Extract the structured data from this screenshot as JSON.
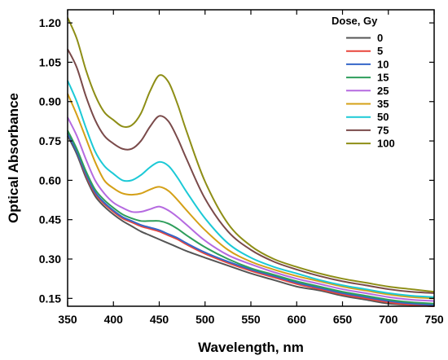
{
  "chart_data": {
    "type": "line",
    "xlabel": "Wavelength, nm",
    "ylabel": "Optical Absorbance",
    "xlim": [
      350,
      750
    ],
    "ylim": [
      0.12,
      1.25
    ],
    "xticks": [
      "350",
      "400",
      "450",
      "500",
      "550",
      "600",
      "650",
      "700",
      "750"
    ],
    "xtick_values": [
      350,
      400,
      450,
      500,
      550,
      600,
      650,
      700,
      750
    ],
    "yticks": [
      "0.15",
      "0.30",
      "0.45",
      "0.60",
      "0.75",
      "0.90",
      "1.05",
      "1.20"
    ],
    "ytick_values": [
      0.15,
      0.3,
      0.45,
      0.6,
      0.75,
      0.9,
      1.05,
      1.2
    ],
    "grid": false,
    "legend": {
      "title": "Dose, Gy",
      "position": "top-right"
    },
    "x": [
      350,
      360,
      370,
      380,
      390,
      400,
      410,
      420,
      430,
      440,
      450,
      460,
      470,
      480,
      500,
      525,
      550,
      575,
      600,
      625,
      650,
      675,
      700,
      725,
      750
    ],
    "series": [
      {
        "name": "0",
        "color": "#555555",
        "values": [
          0.77,
          0.7,
          0.61,
          0.54,
          0.5,
          0.47,
          0.445,
          0.425,
          0.405,
          0.39,
          0.375,
          0.36,
          0.345,
          0.33,
          0.305,
          0.275,
          0.245,
          0.22,
          0.195,
          0.18,
          0.16,
          0.145,
          0.13,
          0.125,
          0.12
        ]
      },
      {
        "name": "5",
        "color": "#e8453c",
        "values": [
          0.78,
          0.71,
          0.62,
          0.55,
          0.51,
          0.48,
          0.455,
          0.44,
          0.425,
          0.415,
          0.405,
          0.39,
          0.375,
          0.355,
          0.32,
          0.285,
          0.255,
          0.23,
          0.205,
          0.185,
          0.165,
          0.15,
          0.135,
          0.125,
          0.12
        ]
      },
      {
        "name": "10",
        "color": "#3466c8",
        "values": [
          0.78,
          0.71,
          0.625,
          0.555,
          0.515,
          0.485,
          0.46,
          0.445,
          0.43,
          0.42,
          0.41,
          0.395,
          0.38,
          0.36,
          0.325,
          0.29,
          0.26,
          0.235,
          0.21,
          0.19,
          0.17,
          0.155,
          0.14,
          0.13,
          0.125
        ]
      },
      {
        "name": "15",
        "color": "#2e9e5b",
        "values": [
          0.79,
          0.72,
          0.635,
          0.565,
          0.525,
          0.495,
          0.47,
          0.455,
          0.445,
          0.445,
          0.445,
          0.435,
          0.415,
          0.39,
          0.345,
          0.3,
          0.265,
          0.24,
          0.215,
          0.195,
          0.175,
          0.16,
          0.145,
          0.135,
          0.13
        ]
      },
      {
        "name": "25",
        "color": "#b56ae0",
        "values": [
          0.84,
          0.77,
          0.68,
          0.6,
          0.55,
          0.515,
          0.495,
          0.48,
          0.48,
          0.49,
          0.5,
          0.485,
          0.46,
          0.43,
          0.37,
          0.315,
          0.28,
          0.25,
          0.225,
          0.205,
          0.185,
          0.17,
          0.155,
          0.145,
          0.14
        ]
      },
      {
        "name": "35",
        "color": "#d4a017",
        "values": [
          0.93,
          0.85,
          0.76,
          0.67,
          0.6,
          0.57,
          0.55,
          0.545,
          0.55,
          0.565,
          0.575,
          0.56,
          0.525,
          0.485,
          0.41,
          0.335,
          0.29,
          0.26,
          0.235,
          0.215,
          0.195,
          0.18,
          0.165,
          0.155,
          0.15
        ]
      },
      {
        "name": "50",
        "color": "#1cc9d6",
        "values": [
          0.98,
          0.9,
          0.8,
          0.71,
          0.655,
          0.625,
          0.6,
          0.6,
          0.62,
          0.65,
          0.67,
          0.655,
          0.61,
          0.555,
          0.455,
          0.36,
          0.305,
          0.27,
          0.245,
          0.22,
          0.2,
          0.185,
          0.17,
          0.16,
          0.155
        ]
      },
      {
        "name": "75",
        "color": "#7a4a4a",
        "values": [
          1.1,
          1.03,
          0.92,
          0.83,
          0.77,
          0.74,
          0.72,
          0.72,
          0.75,
          0.805,
          0.845,
          0.825,
          0.76,
          0.68,
          0.53,
          0.405,
          0.335,
          0.29,
          0.26,
          0.235,
          0.215,
          0.2,
          0.185,
          0.175,
          0.17
        ]
      },
      {
        "name": "100",
        "color": "#8e8e16",
        "values": [
          1.22,
          1.14,
          1.02,
          0.925,
          0.86,
          0.83,
          0.805,
          0.81,
          0.855,
          0.94,
          1.0,
          0.975,
          0.89,
          0.785,
          0.595,
          0.435,
          0.35,
          0.3,
          0.27,
          0.245,
          0.225,
          0.21,
          0.195,
          0.185,
          0.175
        ]
      }
    ]
  }
}
